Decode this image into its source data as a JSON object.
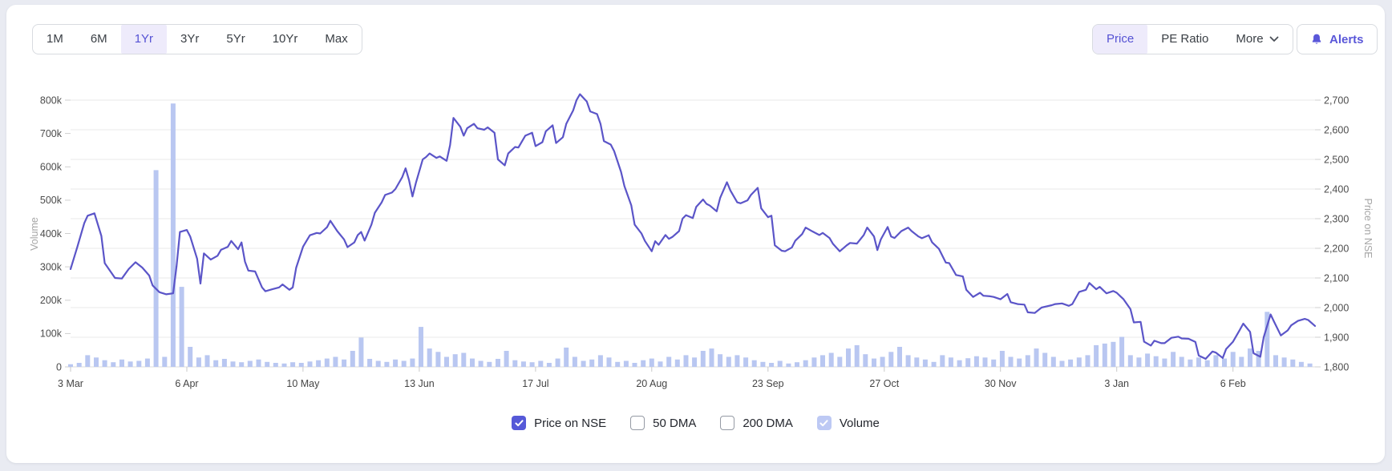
{
  "accent_color": "#5a57d9",
  "page_background": "#e9ebf2",
  "toolbar": {
    "range_buttons": [
      {
        "label": "1M",
        "active": false
      },
      {
        "label": "6M",
        "active": false
      },
      {
        "label": "1Yr",
        "active": true
      },
      {
        "label": "3Yr",
        "active": false
      },
      {
        "label": "5Yr",
        "active": false
      },
      {
        "label": "10Yr",
        "active": false
      },
      {
        "label": "Max",
        "active": false
      }
    ],
    "view_buttons": [
      {
        "label": "Price",
        "active": true
      },
      {
        "label": "PE Ratio",
        "active": false
      },
      {
        "label": "More",
        "active": false,
        "icon": "chevron-down-icon"
      }
    ],
    "alerts_label": "Alerts",
    "alerts_icon": "bell-icon"
  },
  "chart_data": {
    "type": "line",
    "description": "One year stock price line (right axis) with volume bars (left axis)",
    "grid": "horizontal",
    "line_color": "#5b55c8",
    "bar_color": "#b9c7f1",
    "x_axis": {
      "tick_labels": [
        "3 Mar",
        "6 Apr",
        "10 May",
        "13 Jun",
        "17 Jul",
        "20 Aug",
        "23 Sep",
        "27 Oct",
        "30 Nov",
        "3 Jan",
        "6 Feb"
      ],
      "tick_days": [
        0,
        34,
        68,
        102,
        136,
        170,
        204,
        238,
        272,
        306,
        340
      ],
      "total_days": 364
    },
    "left_axis": {
      "title": "Volume",
      "min": 0,
      "max": 800000,
      "tick_labels": [
        "0",
        "100k",
        "200k",
        "300k",
        "400k",
        "500k",
        "600k",
        "700k",
        "800k"
      ]
    },
    "right_axis": {
      "title": "Price on NSE",
      "min": 1800,
      "max": 2700,
      "tick_labels": [
        "1,800",
        "1,900",
        "2,000",
        "2,100",
        "2,200",
        "2,300",
        "2,400",
        "2,500",
        "2,600",
        "2,700"
      ]
    },
    "series": [
      {
        "name": "Price on NSE",
        "type": "line",
        "axis": "right",
        "color": "#5b55c8",
        "points": [
          [
            0,
            2130
          ],
          [
            2,
            2205
          ],
          [
            4,
            2285
          ],
          [
            5,
            2310
          ],
          [
            7,
            2318
          ],
          [
            9,
            2242
          ],
          [
            10,
            2150
          ],
          [
            13,
            2100
          ],
          [
            15,
            2098
          ],
          [
            17,
            2130
          ],
          [
            19,
            2153
          ],
          [
            21,
            2135
          ],
          [
            23,
            2108
          ],
          [
            24,
            2075
          ],
          [
            26,
            2052
          ],
          [
            28,
            2045
          ],
          [
            30,
            2048
          ],
          [
            31,
            2140
          ],
          [
            32,
            2255
          ],
          [
            34,
            2262
          ],
          [
            35,
            2240
          ],
          [
            37,
            2165
          ],
          [
            38,
            2081
          ],
          [
            39,
            2183
          ],
          [
            41,
            2162
          ],
          [
            43,
            2175
          ],
          [
            44,
            2195
          ],
          [
            46,
            2205
          ],
          [
            47,
            2225
          ],
          [
            49,
            2197
          ],
          [
            50,
            2220
          ],
          [
            51,
            2155
          ],
          [
            52,
            2125
          ],
          [
            54,
            2122
          ],
          [
            56,
            2068
          ],
          [
            57,
            2055
          ],
          [
            59,
            2062
          ],
          [
            61,
            2068
          ],
          [
            62,
            2078
          ],
          [
            64,
            2060
          ],
          [
            65,
            2068
          ],
          [
            66,
            2135
          ],
          [
            68,
            2205
          ],
          [
            69,
            2225
          ],
          [
            70,
            2244
          ],
          [
            72,
            2252
          ],
          [
            73,
            2250
          ],
          [
            75,
            2271
          ],
          [
            76,
            2293
          ],
          [
            78,
            2258
          ],
          [
            80,
            2230
          ],
          [
            81,
            2204
          ],
          [
            83,
            2220
          ],
          [
            84,
            2245
          ],
          [
            85,
            2255
          ],
          [
            86,
            2226
          ],
          [
            88,
            2280
          ],
          [
            89,
            2320
          ],
          [
            91,
            2355
          ],
          [
            92,
            2380
          ],
          [
            94,
            2388
          ],
          [
            95,
            2400
          ],
          [
            97,
            2440
          ],
          [
            98,
            2470
          ],
          [
            99,
            2430
          ],
          [
            100,
            2375
          ],
          [
            101,
            2420
          ],
          [
            103,
            2500
          ],
          [
            104,
            2508
          ],
          [
            105,
            2520
          ],
          [
            107,
            2505
          ],
          [
            108,
            2510
          ],
          [
            110,
            2495
          ],
          [
            111,
            2548
          ],
          [
            112,
            2640
          ],
          [
            114,
            2610
          ],
          [
            115,
            2580
          ],
          [
            116,
            2605
          ],
          [
            118,
            2620
          ],
          [
            119,
            2605
          ],
          [
            121,
            2600
          ],
          [
            122,
            2608
          ],
          [
            124,
            2590
          ],
          [
            125,
            2500
          ],
          [
            127,
            2480
          ],
          [
            128,
            2520
          ],
          [
            130,
            2542
          ],
          [
            131,
            2540
          ],
          [
            133,
            2580
          ],
          [
            135,
            2590
          ],
          [
            136,
            2545
          ],
          [
            138,
            2558
          ],
          [
            139,
            2595
          ],
          [
            141,
            2615
          ],
          [
            142,
            2555
          ],
          [
            144,
            2575
          ],
          [
            145,
            2620
          ],
          [
            147,
            2665
          ],
          [
            148,
            2700
          ],
          [
            149,
            2720
          ],
          [
            151,
            2695
          ],
          [
            152,
            2662
          ],
          [
            154,
            2653
          ],
          [
            155,
            2620
          ],
          [
            156,
            2562
          ],
          [
            158,
            2550
          ],
          [
            159,
            2528
          ],
          [
            161,
            2458
          ],
          [
            162,
            2410
          ],
          [
            164,
            2345
          ],
          [
            165,
            2280
          ],
          [
            167,
            2250
          ],
          [
            168,
            2225
          ],
          [
            170,
            2190
          ],
          [
            171,
            2224
          ],
          [
            172,
            2212
          ],
          [
            174,
            2245
          ],
          [
            175,
            2232
          ],
          [
            176,
            2238
          ],
          [
            178,
            2258
          ],
          [
            179,
            2300
          ],
          [
            180,
            2312
          ],
          [
            182,
            2302
          ],
          [
            183,
            2340
          ],
          [
            185,
            2365
          ],
          [
            186,
            2350
          ],
          [
            187,
            2344
          ],
          [
            189,
            2325
          ],
          [
            190,
            2370
          ],
          [
            192,
            2423
          ],
          [
            193,
            2395
          ],
          [
            195,
            2355
          ],
          [
            196,
            2352
          ],
          [
            198,
            2362
          ],
          [
            199,
            2380
          ],
          [
            201,
            2404
          ],
          [
            202,
            2335
          ],
          [
            204,
            2305
          ],
          [
            205,
            2310
          ],
          [
            206,
            2210
          ],
          [
            208,
            2192
          ],
          [
            209,
            2190
          ],
          [
            211,
            2203
          ],
          [
            212,
            2226
          ],
          [
            214,
            2248
          ],
          [
            215,
            2270
          ],
          [
            217,
            2257
          ],
          [
            219,
            2245
          ],
          [
            220,
            2252
          ],
          [
            222,
            2235
          ],
          [
            223,
            2215
          ],
          [
            225,
            2190
          ],
          [
            227,
            2210
          ],
          [
            228,
            2218
          ],
          [
            230,
            2216
          ],
          [
            232,
            2245
          ],
          [
            233,
            2270
          ],
          [
            235,
            2240
          ],
          [
            236,
            2194
          ],
          [
            237,
            2230
          ],
          [
            239,
            2272
          ],
          [
            240,
            2240
          ],
          [
            241,
            2235
          ],
          [
            243,
            2258
          ],
          [
            245,
            2270
          ],
          [
            246,
            2258
          ],
          [
            248,
            2240
          ],
          [
            249,
            2234
          ],
          [
            251,
            2244
          ],
          [
            252,
            2220
          ],
          [
            254,
            2198
          ],
          [
            256,
            2152
          ],
          [
            257,
            2150
          ],
          [
            259,
            2110
          ],
          [
            261,
            2105
          ],
          [
            262,
            2060
          ],
          [
            264,
            2036
          ],
          [
            266,
            2050
          ],
          [
            267,
            2040
          ],
          [
            269,
            2038
          ],
          [
            270,
            2036
          ],
          [
            272,
            2028
          ],
          [
            274,
            2046
          ],
          [
            275,
            2018
          ],
          [
            277,
            2012
          ],
          [
            279,
            2010
          ],
          [
            280,
            1984
          ],
          [
            282,
            1982
          ],
          [
            284,
            2000
          ],
          [
            285,
            2003
          ],
          [
            287,
            2008
          ],
          [
            288,
            2012
          ],
          [
            290,
            2014
          ],
          [
            292,
            2006
          ],
          [
            293,
            2012
          ],
          [
            295,
            2053
          ],
          [
            297,
            2060
          ],
          [
            298,
            2083
          ],
          [
            300,
            2062
          ],
          [
            301,
            2070
          ],
          [
            303,
            2048
          ],
          [
            305,
            2056
          ],
          [
            306,
            2050
          ],
          [
            308,
            2028
          ],
          [
            310,
            1995
          ],
          [
            311,
            1950
          ],
          [
            313,
            1952
          ],
          [
            314,
            1885
          ],
          [
            316,
            1872
          ],
          [
            317,
            1888
          ],
          [
            319,
            1880
          ],
          [
            320,
            1880
          ],
          [
            322,
            1898
          ],
          [
            324,
            1902
          ],
          [
            325,
            1896
          ],
          [
            327,
            1895
          ],
          [
            329,
            1884
          ],
          [
            330,
            1838
          ],
          [
            332,
            1827
          ],
          [
            334,
            1852
          ],
          [
            335,
            1848
          ],
          [
            337,
            1830
          ],
          [
            338,
            1860
          ],
          [
            340,
            1885
          ],
          [
            342,
            1925
          ],
          [
            343,
            1946
          ],
          [
            345,
            1918
          ],
          [
            346,
            1846
          ],
          [
            348,
            1834
          ],
          [
            349,
            1900
          ],
          [
            351,
            1977
          ],
          [
            352,
            1953
          ],
          [
            354,
            1906
          ],
          [
            356,
            1923
          ],
          [
            357,
            1940
          ],
          [
            359,
            1955
          ],
          [
            361,
            1962
          ],
          [
            362,
            1958
          ],
          [
            364,
            1938
          ]
        ]
      },
      {
        "name": "Volume",
        "type": "bar",
        "axis": "left",
        "color": "#b9c7f1",
        "day_step": 2.5,
        "values_k": [
          8,
          12,
          35,
          28,
          20,
          14,
          22,
          16,
          18,
          25,
          590,
          30,
          790,
          240,
          60,
          28,
          35,
          20,
          24,
          16,
          14,
          18,
          22,
          15,
          12,
          10,
          14,
          12,
          16,
          20,
          25,
          30,
          22,
          48,
          88,
          24,
          18,
          15,
          22,
          18,
          25,
          120,
          55,
          45,
          30,
          38,
          42,
          25,
          18,
          15,
          24,
          48,
          20,
          16,
          14,
          18,
          12,
          25,
          58,
          30,
          18,
          22,
          35,
          28,
          15,
          18,
          12,
          20,
          25,
          16,
          30,
          22,
          35,
          28,
          48,
          55,
          38,
          30,
          35,
          28,
          20,
          15,
          12,
          18,
          10,
          14,
          20,
          28,
          35,
          42,
          30,
          55,
          65,
          38,
          25,
          30,
          45,
          60,
          35,
          28,
          22,
          15,
          35,
          28,
          20,
          26,
          32,
          28,
          22,
          48,
          30,
          25,
          35,
          55,
          42,
          30,
          18,
          22,
          28,
          35,
          65,
          70,
          75,
          90,
          35,
          28,
          40,
          32,
          25,
          45,
          30,
          22,
          28,
          20,
          35,
          25,
          45,
          30,
          55,
          48,
          165,
          35,
          28,
          22,
          15,
          10
        ]
      }
    ]
  },
  "legend": {
    "items": [
      {
        "label": "Price on NSE",
        "checked": true,
        "checkbox_color": "#5659d8"
      },
      {
        "label": "50 DMA",
        "checked": false,
        "checkbox_color": null
      },
      {
        "label": "200 DMA",
        "checked": false,
        "checkbox_color": null
      },
      {
        "label": "Volume",
        "checked": true,
        "checkbox_color": "#bdc9f4"
      }
    ],
    "check_icon": "checkmark-icon"
  }
}
